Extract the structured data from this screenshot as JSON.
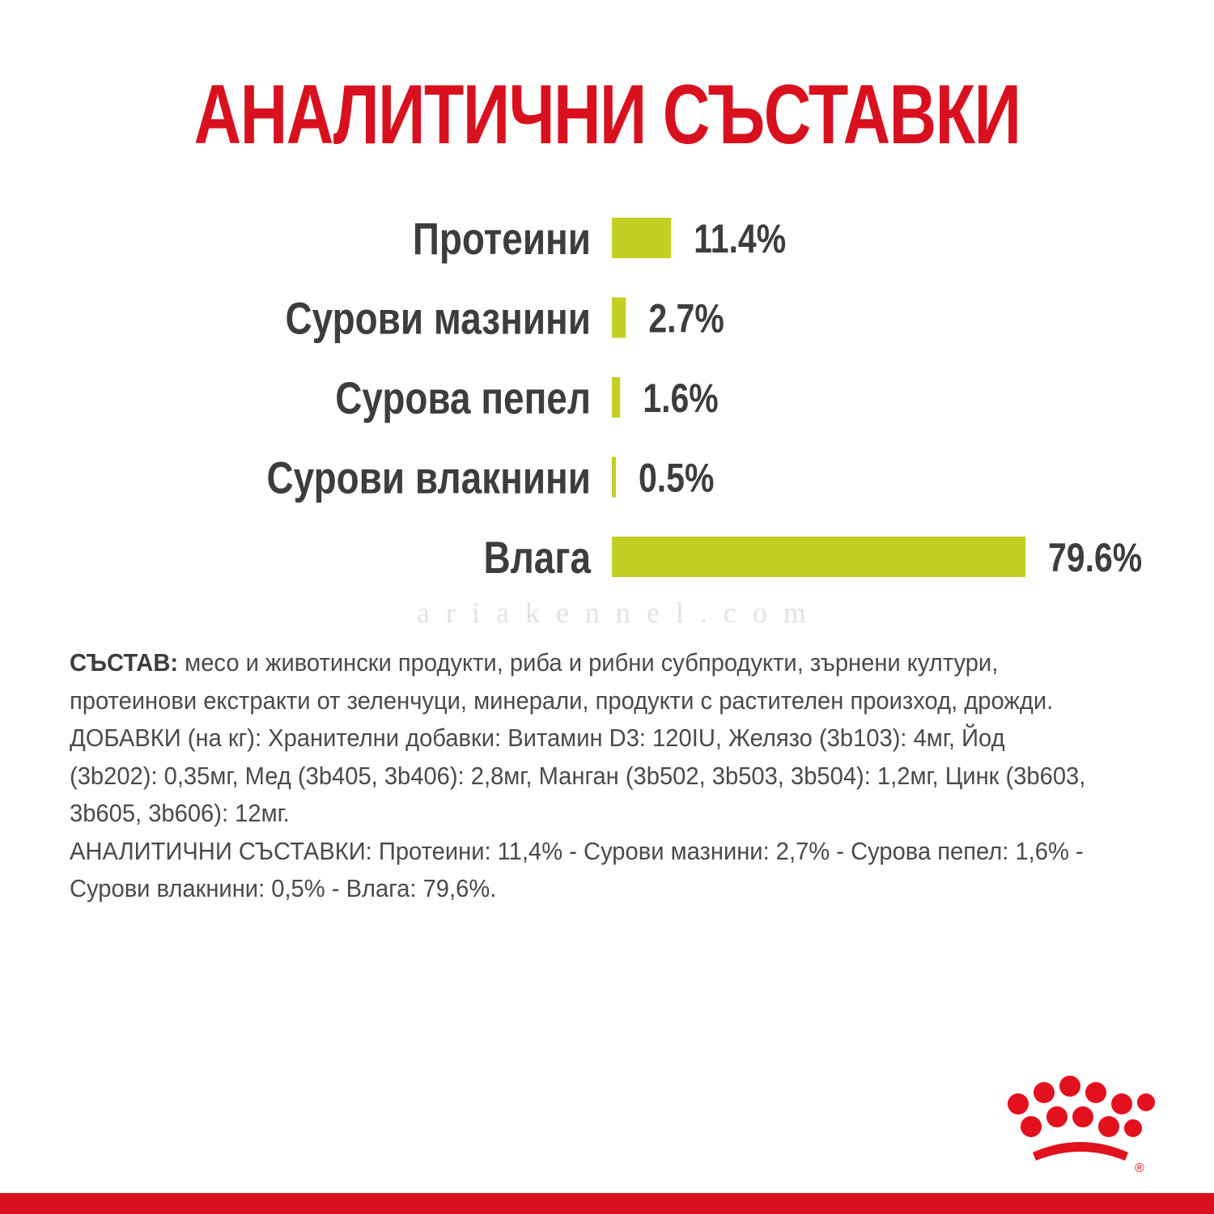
{
  "title": "АНАЛИТИЧНИ СЪСТАВКИ",
  "colors": {
    "title": "#d9111e",
    "bar": "#c3cf23",
    "label": "#3d3d3d",
    "band": "#d9111e",
    "logo": "#e3101e"
  },
  "watermark": "ariakennel.com",
  "chart_data": {
    "type": "bar",
    "orientation": "horizontal",
    "categories": [
      "Протеини",
      "Сурови мазнини",
      "Сурова пепел",
      "Сурови влакнини",
      "Влага"
    ],
    "values": [
      11.4,
      2.7,
      1.6,
      0.5,
      79.6
    ],
    "value_labels": [
      "11.4%",
      "2.7%",
      "1.6%",
      "0.5%",
      "79.6%"
    ],
    "unit": "%",
    "grid": false,
    "legend": "none"
  },
  "composition": {
    "heading": "СЪСТАВ:",
    "text": " месо и животински продукти, риба и рибни субпродукти, зърнени култури, протеинови екстракти от зеленчуци, минерали, продукти с растителен произход, дрожди.",
    "additives": "ДОБАВКИ (на кг): Хранителни добавки: Витамин D3: 120IU, Желязо (3b103): 4мг, Йод (3b202): 0,35мг, Мед (3b405, 3b406): 2,8мг, Манган (3b502, 3b503, 3b504): 1,2мг, Цинк (3b603, 3b605, 3b606): 12мг.",
    "analytical": "АНАЛИТИЧНИ СЪСТАВКИ: Протеини: 11,4% - Сурови мазнини: 2,7% - Сурова пепел: 1,6% - Сурови влакнини: 0,5% - Влага: 79,6%."
  },
  "logo": {
    "registered_mark": "®"
  }
}
